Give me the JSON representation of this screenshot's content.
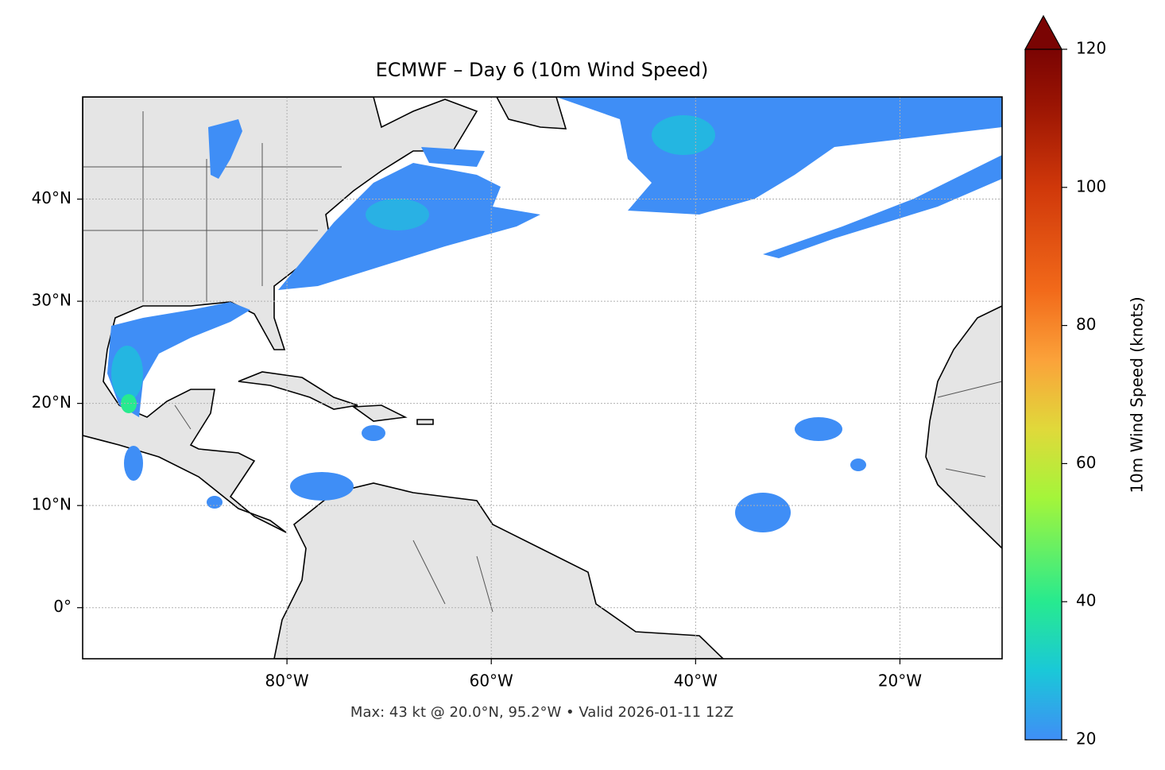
{
  "map": {
    "title": "ECMWF – Day 6 (10m Wind Speed)",
    "xlim": [
      -100,
      -10
    ],
    "ylim": [
      -5,
      50
    ],
    "xticks": [
      {
        "value": -80,
        "label": "80°W"
      },
      {
        "value": -60,
        "label": "60°W"
      },
      {
        "value": -40,
        "label": "40°W"
      },
      {
        "value": -20,
        "label": "20°W"
      }
    ],
    "yticks": [
      {
        "value": 0,
        "label": "0°"
      },
      {
        "value": 10,
        "label": "10°N"
      },
      {
        "value": 20,
        "label": "20°N"
      },
      {
        "value": 30,
        "label": "30°N"
      },
      {
        "value": 40,
        "label": "40°N"
      }
    ],
    "grid": true,
    "colorbar": {
      "label": "10m Wind Speed (knots)",
      "lim": [
        20,
        120
      ],
      "ticks": [
        20,
        40,
        60,
        80,
        100,
        120
      ],
      "extend": "max"
    },
    "footer": "Max: 43 kt @ 20.0°N, 95.2°W • Valid 2026-01-11 12Z"
  }
}
